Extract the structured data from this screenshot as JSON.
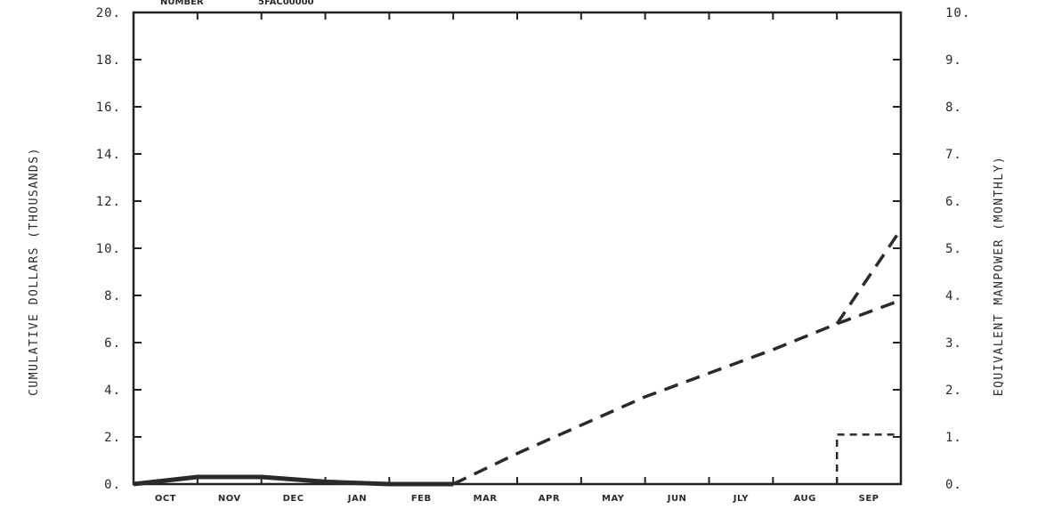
{
  "header": {
    "label": "NUMBER",
    "value": "5FAC00000"
  },
  "chart_data": {
    "type": "line",
    "ylabel": "CUMULATIVE DOLLARS (THOUSANDS)",
    "y2label": "EQUIVALENT MANPOWER (MONTHLY)",
    "ylim": [
      0,
      20
    ],
    "y2lim": [
      0,
      10
    ],
    "categories": [
      "OCT",
      "NOV",
      "DEC",
      "JAN",
      "FEB",
      "MAR",
      "APR",
      "MAY",
      "JUN",
      "JLY",
      "AUG",
      "SEP"
    ],
    "y_ticks": [
      "0.",
      "2.",
      "4.",
      "6.",
      "8.",
      "10.",
      "12.",
      "14.",
      "16.",
      "18.",
      "20."
    ],
    "y2_ticks": [
      "0.",
      "1.",
      "2.",
      "3.",
      "4.",
      "5.",
      "6.",
      "7.",
      "8.",
      "9.",
      "10."
    ],
    "grid": false,
    "series": [
      {
        "style": "solid",
        "axis": "left",
        "x": [
          0,
          1,
          2,
          3,
          4,
          5
        ],
        "values": [
          0.0,
          0.3,
          0.3,
          0.1,
          0.0,
          0.0
        ]
      },
      {
        "style": "dashed",
        "axis": "left",
        "x": [
          5,
          6,
          7,
          8,
          9,
          10,
          11,
          12
        ],
        "values": [
          0.0,
          1.3,
          2.5,
          3.7,
          4.7,
          5.7,
          6.8,
          7.8
        ]
      },
      {
        "style": "dashed",
        "axis": "left",
        "x": [
          11,
          12
        ],
        "values": [
          6.8,
          10.8
        ]
      },
      {
        "style": "dashed",
        "axis": "right",
        "x": [
          11,
          11,
          12
        ],
        "values": [
          0.0,
          1.05,
          1.05
        ]
      }
    ]
  }
}
